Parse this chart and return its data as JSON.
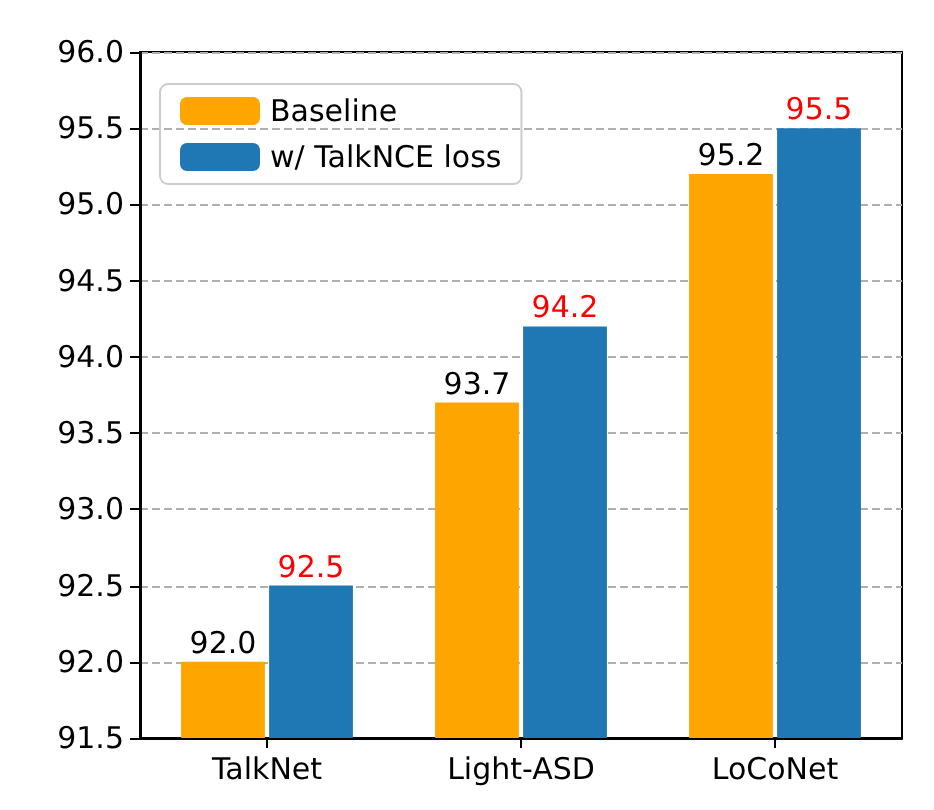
{
  "chart_data": {
    "type": "bar",
    "categories": [
      "TalkNet",
      "Light-ASD",
      "LoCoNet"
    ],
    "series": [
      {
        "name": "Baseline",
        "color": "#ffa500",
        "values": [
          92.0,
          93.7,
          95.2
        ],
        "value_labels": [
          "92.0",
          "93.7",
          "95.2"
        ]
      },
      {
        "name": "w/ TalkNCE loss",
        "color": "#1f77b4",
        "values": [
          92.5,
          94.2,
          95.5
        ],
        "value_labels": [
          "92.5",
          "94.2",
          "95.5"
        ]
      }
    ],
    "ylim": [
      91.5,
      96
    ],
    "yticks": [
      91.5,
      {
        "value": 92,
        "label": "92.0"
      },
      92.5,
      {
        "value": 93,
        "label": "93.0"
      },
      93.5,
      {
        "value": 94,
        "label": "94.0"
      },
      94.5,
      {
        "value": 95,
        "label": "95.0"
      },
      95.5,
      {
        "value": 96,
        "label": "96.0"
      }
    ],
    "grid": "y",
    "legend": "top left"
  }
}
